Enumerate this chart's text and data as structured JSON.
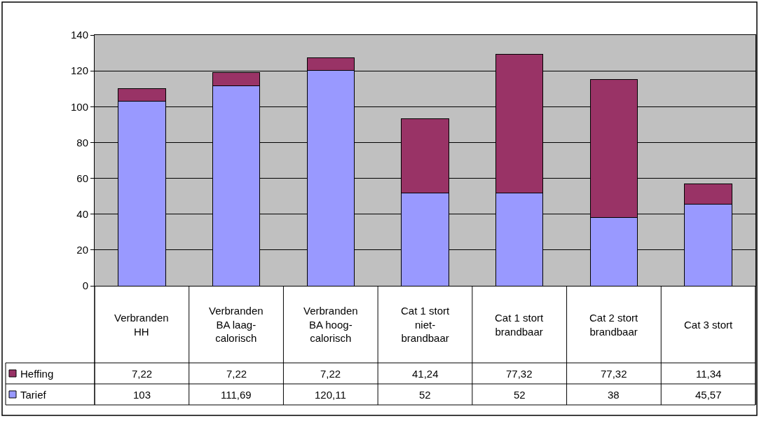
{
  "chart_data": {
    "type": "bar",
    "stacked": true,
    "categories": [
      "Verbranden HH",
      "Verbranden BA laag-calorisch",
      "Verbranden BA hoog-calorisch",
      "Cat 1 stort niet-brandbaar",
      "Cat 1 stort brandbaar",
      "Cat 2 stort brandbaar",
      "Cat 3 stort"
    ],
    "series": [
      {
        "name": "Tarief",
        "color": "#9999ff",
        "values": [
          103,
          111.69,
          120.11,
          52,
          52,
          38,
          45.57
        ],
        "value_labels": [
          "103",
          "111,69",
          "120,11",
          "52",
          "52",
          "38",
          "45,57"
        ]
      },
      {
        "name": "Heffing",
        "color": "#993366",
        "values": [
          7.22,
          7.22,
          7.22,
          41.24,
          77.32,
          77.32,
          11.34
        ],
        "value_labels": [
          "7,22",
          "7,22",
          "7,22",
          "41,24",
          "77,32",
          "77,32",
          "11,34"
        ]
      }
    ],
    "ylim": [
      0,
      140
    ],
    "yticks": [
      0,
      20,
      40,
      60,
      80,
      100,
      120,
      140
    ],
    "grid": "y",
    "legend": "bottom left"
  }
}
